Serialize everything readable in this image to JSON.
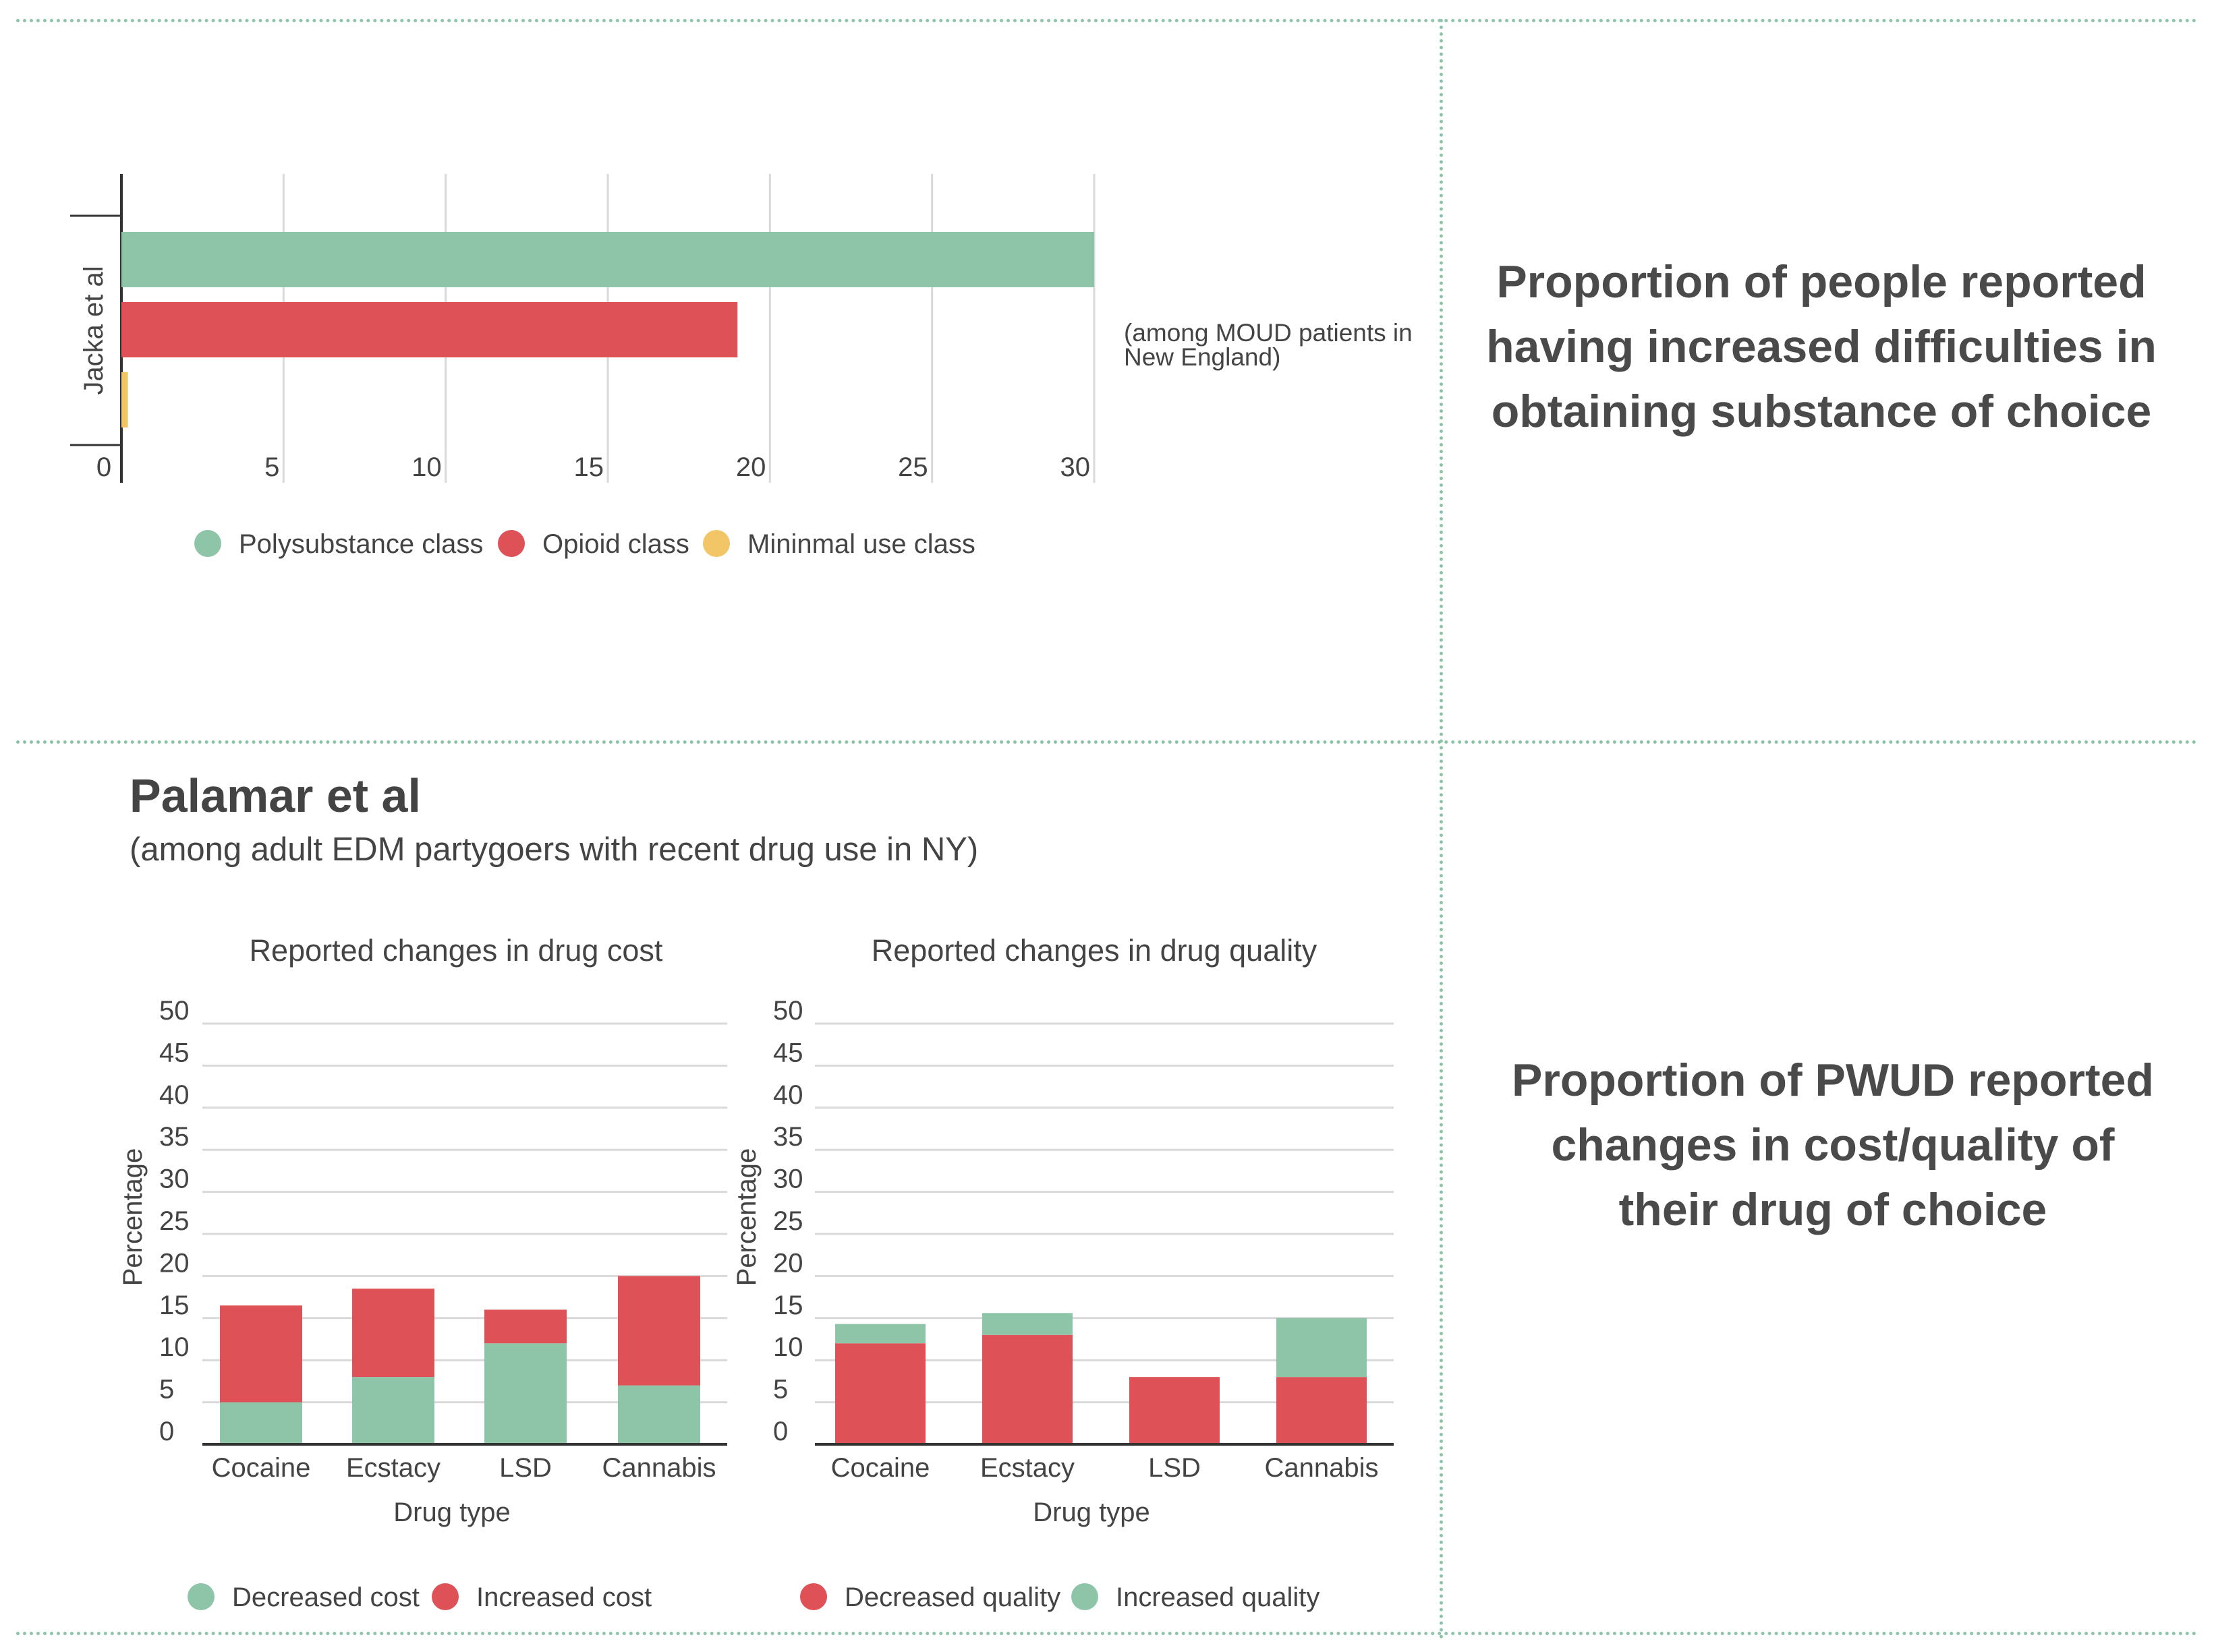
{
  "panel_top": {
    "side_title": "Proportion of people reported having increased difficulties in obtaining substance of choice",
    "note": "(among MOUD patients in New England)"
  },
  "panel_bottom": {
    "side_title": "Proportion of PWUD reported changes in cost/quality of their drug of choice",
    "study_title": "Palamar et al",
    "study_subtitle": "(among adult EDM partygoers with recent drug use in NY)"
  },
  "colors": {
    "green": "#8ec4a7",
    "red": "#de5257",
    "yellow": "#f2c566",
    "grid": "#d9d9d9",
    "axis": "#333333",
    "divider": "#8cc4a8"
  },
  "chart_data": [
    {
      "id": "jacka",
      "type": "bar",
      "orientation": "horizontal",
      "category_label": "Jacka et al",
      "series": [
        {
          "name": "Polysubstance class",
          "value": 30,
          "color": "#8ec4a7"
        },
        {
          "name": "Opioid class",
          "value": 19,
          "color": "#de5257"
        },
        {
          "name": "Mininmal use class",
          "value": 0.2,
          "color": "#f2c566"
        }
      ],
      "xlim": [
        0,
        30
      ],
      "ticks": [
        0,
        5,
        10,
        15,
        20,
        25,
        30
      ],
      "grid": true,
      "legend_position": "bottom"
    },
    {
      "id": "cost",
      "type": "bar",
      "stacked": true,
      "title": "Reported changes in drug cost",
      "xlabel": "Drug type",
      "ylabel": "Percentage",
      "categories": [
        "Cocaine",
        "Ecstacy",
        "LSD",
        "Cannabis"
      ],
      "series": [
        {
          "name": "Decreased cost",
          "values": [
            5,
            8,
            12,
            7
          ],
          "color": "#8ec4a7"
        },
        {
          "name": "Increased cost",
          "values": [
            11.5,
            10.5,
            4,
            13
          ],
          "color": "#de5257"
        }
      ],
      "ylim": [
        0,
        50
      ],
      "yticks": [
        0,
        5,
        10,
        15,
        20,
        25,
        30,
        35,
        40,
        45,
        50
      ],
      "legend_position": "bottom"
    },
    {
      "id": "quality",
      "type": "bar",
      "stacked": true,
      "title": "Reported changes in drug quality",
      "xlabel": "Drug type",
      "ylabel": "Percentage",
      "categories": [
        "Cocaine",
        "Ecstacy",
        "LSD",
        "Cannabis"
      ],
      "series": [
        {
          "name": "Decreased quality",
          "values": [
            12,
            13,
            8,
            8
          ],
          "color": "#de5257"
        },
        {
          "name": "Increased quality",
          "values": [
            2.3,
            2.6,
            0,
            7
          ],
          "color": "#8ec4a7"
        }
      ],
      "ylim": [
        0,
        50
      ],
      "yticks": [
        0,
        5,
        10,
        15,
        20,
        25,
        30,
        35,
        40,
        45,
        50
      ],
      "legend_position": "bottom"
    }
  ]
}
